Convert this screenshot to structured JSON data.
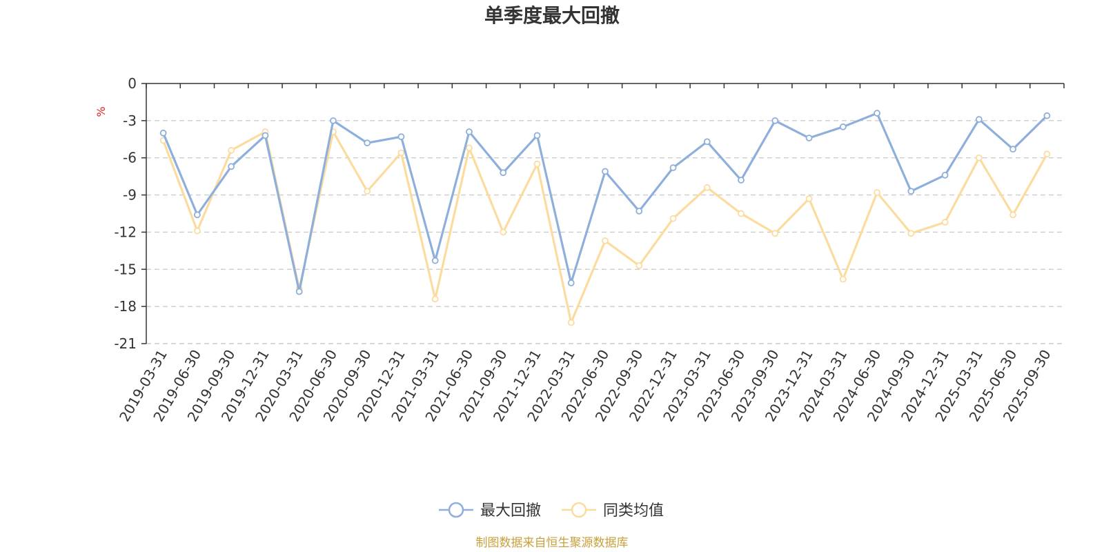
{
  "chart_data": {
    "type": "line",
    "title": "单季度最大回撤",
    "yunit": "%",
    "ylim": [
      -21,
      0
    ],
    "yticks": [
      0,
      -3,
      -6,
      -9,
      -12,
      -15,
      -18,
      -21
    ],
    "grid": true,
    "legend_position": "bottom-center",
    "categories": [
      "2019-03-31",
      "2019-06-30",
      "2019-09-30",
      "2019-12-31",
      "2020-03-31",
      "2020-06-30",
      "2020-09-30",
      "2020-12-31",
      "2021-03-31",
      "2021-06-30",
      "2021-09-30",
      "2021-12-31",
      "2022-03-31",
      "2022-06-30",
      "2022-09-30",
      "2022-12-31",
      "2023-03-31",
      "2023-06-30",
      "2023-09-30",
      "2023-12-31",
      "2024-03-31",
      "2024-06-30",
      "2024-09-30",
      "2024-12-31",
      "2025-03-31",
      "2025-06-30",
      "2025-09-30"
    ],
    "series": [
      {
        "name": "最大回撤",
        "color": "#8eaedc",
        "values": [
          -4.0,
          -10.6,
          -6.7,
          -4.2,
          -16.8,
          -3.0,
          -4.8,
          -4.3,
          -14.3,
          -3.9,
          -7.2,
          -4.2,
          -16.1,
          -7.1,
          -10.3,
          -6.8,
          -4.7,
          -7.8,
          -3.0,
          -4.4,
          -3.5,
          -2.4,
          -8.7,
          -7.4,
          -2.9,
          -5.3,
          -2.6
        ]
      },
      {
        "name": "同类均值",
        "color": "#fbdc9e",
        "values": [
          -4.6,
          -11.9,
          -5.4,
          -3.9,
          -16.6,
          -3.9,
          -8.7,
          -5.6,
          -17.4,
          -5.2,
          -12.0,
          -6.5,
          -19.3,
          -12.7,
          -14.7,
          -10.9,
          -8.4,
          -10.5,
          -12.1,
          -9.3,
          -15.8,
          -8.8,
          -12.1,
          -11.2,
          -6.0,
          -10.6,
          -5.7
        ]
      }
    ]
  },
  "footer": {
    "source": "制图数据来自恒生聚源数据库",
    "source_color": "#c8a03c"
  },
  "colors": {
    "unit": "#e02020",
    "axis": "#333333",
    "grid": "#cccccc"
  }
}
